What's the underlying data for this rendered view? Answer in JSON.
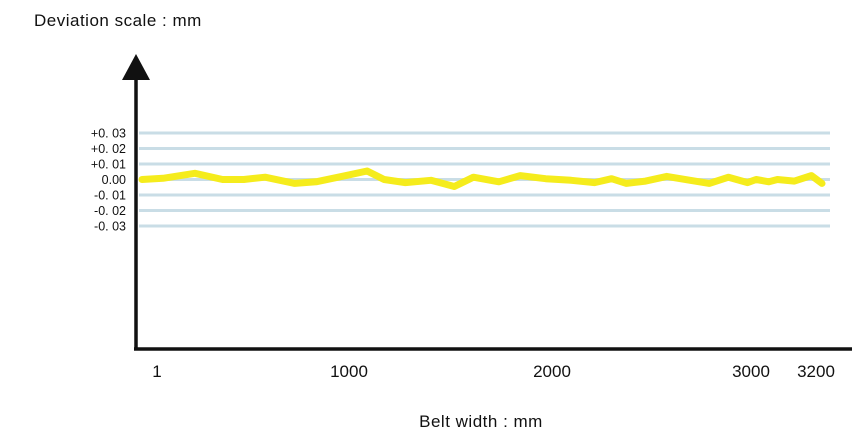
{
  "chart_data": {
    "type": "line",
    "ylabel": "Deviation scale : mm",
    "xlabel": "Belt width : mm",
    "y_ticks": [
      "+0. 03",
      "+0. 02",
      "+0. 01",
      "0.00",
      "-0. 01",
      "-0. 02",
      "-0. 03"
    ],
    "y_tick_values": [
      0.03,
      0.02,
      0.01,
      0.0,
      -0.01,
      -0.02,
      -0.03
    ],
    "x_ticks": [
      "1",
      "1000",
      "2000",
      "3000",
      "3200"
    ],
    "x_tick_values": [
      1,
      1000,
      2000,
      3000,
      3200
    ],
    "xlim": [
      1,
      3200
    ],
    "ylim": [
      -0.03,
      0.03
    ],
    "grid": true,
    "series": [
      {
        "color": "#f5ec1c",
        "x": [
          1,
          100,
          250,
          380,
          480,
          580,
          720,
          820,
          960,
          1060,
          1140,
          1240,
          1360,
          1470,
          1560,
          1680,
          1780,
          1900,
          2020,
          2130,
          2210,
          2280,
          2370,
          2470,
          2580,
          2670,
          2760,
          2850,
          2890,
          2950,
          2990,
          3070,
          3150,
          3200
        ],
        "y": [
          0.0,
          0.0008,
          0.004,
          0.0,
          0.0,
          0.0015,
          -0.0025,
          -0.0015,
          0.0025,
          0.0055,
          0.0,
          -0.002,
          -0.0005,
          -0.0045,
          0.0015,
          -0.0015,
          0.0025,
          0.0005,
          -0.0005,
          -0.002,
          0.0005,
          -0.0025,
          -0.001,
          0.002,
          -0.0005,
          -0.0025,
          0.0015,
          -0.002,
          0.0,
          -0.0015,
          0.0,
          -0.001,
          0.0025,
          -0.0025
        ]
      }
    ],
    "colors": {
      "axis": "#111111",
      "grid": "#c9dde6",
      "line": "#f5ec1c"
    }
  }
}
